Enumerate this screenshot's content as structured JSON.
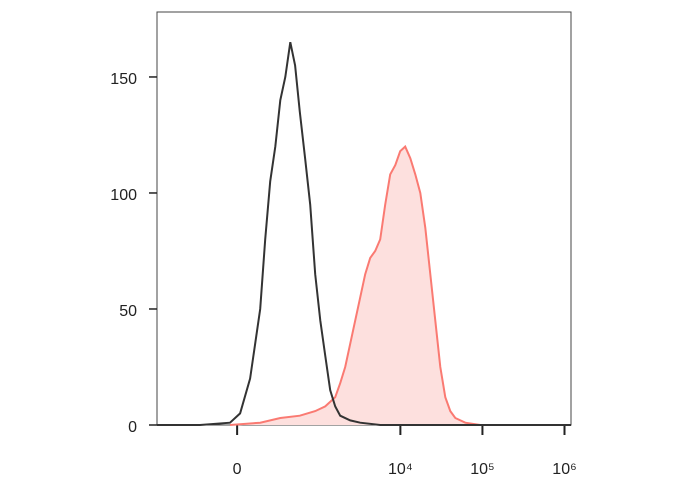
{
  "chart_data": {
    "type": "histogram-line",
    "xscale": "biexponential",
    "xlim": [
      -960,
      1200000
    ],
    "ylim": [
      0,
      178
    ],
    "xticks": [
      0,
      {
        "value": 10000,
        "label": "10⁴"
      },
      {
        "value": 100000,
        "label": "10⁵"
      },
      {
        "value": 1000000,
        "label": "10⁶"
      }
    ],
    "yticks": [
      0,
      50,
      100,
      150
    ],
    "series": [
      {
        "color": "#fa7a72",
        "fill": "#fde0de",
        "x": [
          -41,
          142,
          314,
          578,
          904,
          1203,
          1599,
          1843,
          2124,
          2444,
          2812,
          3237,
          3727,
          4291,
          4936,
          5679,
          6540,
          7524,
          8661,
          9963,
          11460,
          13200,
          15190,
          17480,
          20110,
          23140,
          26630,
          30630,
          35260,
          40550,
          46640,
          61750,
          94200
        ],
        "values": [
          0,
          1,
          3,
          4,
          6,
          8,
          12,
          18,
          25,
          35,
          45,
          55,
          65,
          72,
          75,
          80,
          95,
          108,
          112,
          118,
          120,
          115,
          108,
          100,
          85,
          65,
          45,
          25,
          12,
          6,
          3,
          1,
          0
        ]
      },
      {
        "color": "#333333",
        "x": [
          -960,
          -254,
          -41,
          17,
          76,
          142,
          179,
          219,
          264,
          314,
          370,
          432,
          501,
          578,
          676,
          783,
          904,
          1046,
          1203,
          1388,
          1599,
          1843,
          2444,
          3237,
          5679,
          1200000
        ],
        "values": [
          0,
          0,
          1,
          5,
          20,
          50,
          80,
          105,
          120,
          140,
          150,
          165,
          155,
          135,
          115,
          95,
          65,
          45,
          30,
          15,
          8,
          4,
          2,
          1,
          0,
          0
        ]
      }
    ]
  }
}
